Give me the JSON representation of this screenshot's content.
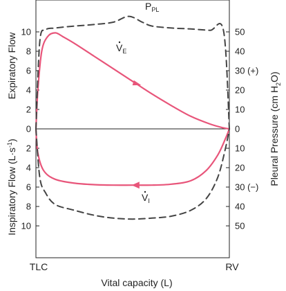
{
  "chart_data": {
    "type": "line",
    "xlabel": "Vital capacity (L)",
    "x_left_label": "TLC",
    "x_right_label": "RV",
    "xlim": [
      0,
      1
    ],
    "left_axis": {
      "label_top": "Expiratory Flow",
      "label_bottom": "Inspiratory Flow (L·s",
      "label_bottom_sup": "-1",
      "label_bottom_end": ")",
      "ticks_expiratory": [
        10,
        8,
        6,
        4,
        2,
        0
      ],
      "ticks_inspiratory": [
        2,
        4,
        6,
        8,
        10
      ],
      "ylim": [
        -12,
        11
      ]
    },
    "right_axis": {
      "label": "Pleural Pressure (cm H",
      "label_sub": "2",
      "label_end": "O)",
      "ticks": [
        "50",
        "40",
        "30 (+)",
        "20",
        "10",
        "0",
        "10",
        "20",
        "30 (−)",
        "40",
        "50"
      ],
      "tick_values": [
        50,
        40,
        30,
        20,
        10,
        0,
        -10,
        -20,
        -30,
        -40,
        -50
      ],
      "ylim": [
        -60,
        55
      ]
    },
    "annotations": {
      "pleural_label": "P",
      "pleural_label_sub": "PL",
      "ve_label": "V",
      "ve_label_sub": "E",
      "vi_label": "V",
      "vi_label_sub": "I"
    },
    "series": [
      {
        "name": "V̇E",
        "color": "#e8557a",
        "style": "solid",
        "x": [
          0,
          0.01,
          0.03,
          0.06,
          0.1,
          0.14,
          0.2,
          0.3,
          0.4,
          0.5,
          0.6,
          0.7,
          0.8,
          0.9,
          0.97,
          1.0
        ],
        "y": [
          0,
          4,
          8,
          9.5,
          9.9,
          9.5,
          8.8,
          7.5,
          6.2,
          4.9,
          3.6,
          2.4,
          1.3,
          0.5,
          0.1,
          0
        ]
      },
      {
        "name": "V̇I",
        "color": "#e8557a",
        "style": "solid",
        "x": [
          0,
          0.01,
          0.04,
          0.1,
          0.2,
          0.3,
          0.4,
          0.5,
          0.6,
          0.7,
          0.8,
          0.88,
          0.94,
          0.98,
          1.0
        ],
        "y": [
          0,
          -2.5,
          -4.3,
          -5.2,
          -5.6,
          -5.75,
          -5.8,
          -5.8,
          -5.8,
          -5.7,
          -5.35,
          -4.3,
          -2.7,
          -1.0,
          0
        ]
      },
      {
        "name": "PPL",
        "color": "#444444",
        "style": "dashed",
        "axis": "right",
        "x": [
          0,
          0.02,
          0.05,
          0.1,
          0.2,
          0.3,
          0.4,
          0.48,
          0.55,
          0.6,
          0.7,
          0.8,
          0.9,
          0.97,
          1.0
        ],
        "y": [
          0,
          45,
          51,
          52,
          53,
          53.8,
          55,
          58,
          55,
          53,
          52,
          51.5,
          50.8,
          50.5,
          0
        ]
      },
      {
        "name": "PPL-inspiratory",
        "color": "#444444",
        "style": "dashed",
        "axis": "right",
        "x": [
          0,
          0.02,
          0.05,
          0.1,
          0.2,
          0.3,
          0.4,
          0.5,
          0.6,
          0.7,
          0.8,
          0.88,
          0.94,
          0.98,
          1.0
        ],
        "y": [
          0,
          -25,
          -33,
          -39,
          -42,
          -44.5,
          -46,
          -46.5,
          -46,
          -45,
          -42,
          -36,
          -25,
          -10,
          0
        ]
      }
    ]
  }
}
